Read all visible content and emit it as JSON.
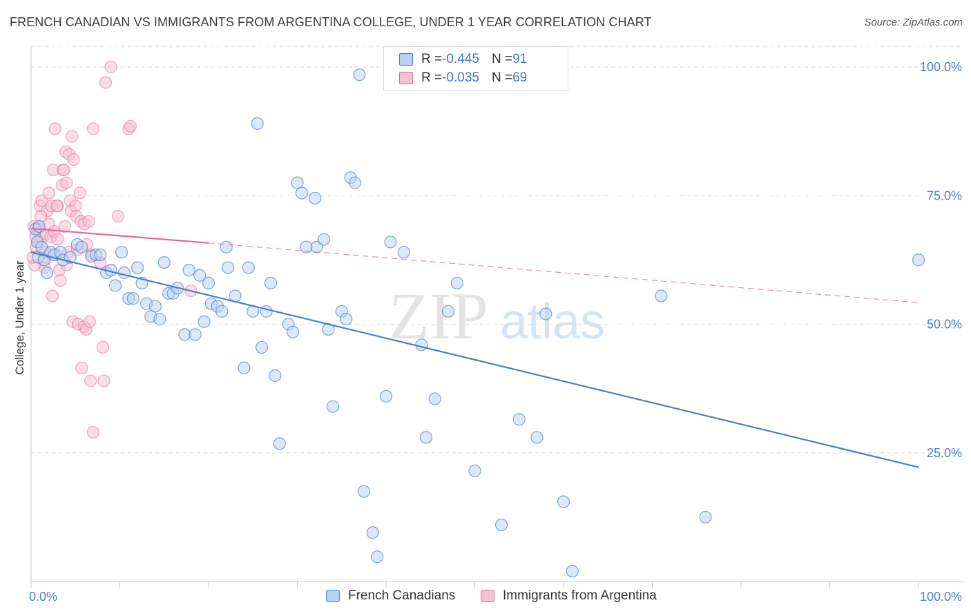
{
  "header": {
    "title": "FRENCH CANADIAN VS IMMIGRANTS FROM ARGENTINA COLLEGE, UNDER 1 YEAR CORRELATION CHART",
    "source": "Source: ZipAtlas.com"
  },
  "watermark": {
    "zip": "ZIP",
    "atlas": "atlas"
  },
  "legend": {
    "rows": [
      {
        "r_label": "R = ",
        "r_value": "-0.445",
        "n_label": "N = ",
        "n_value": "91"
      },
      {
        "r_label": "R = ",
        "r_value": "-0.035",
        "n_label": "N = ",
        "n_value": "69"
      }
    ]
  },
  "chart_data": {
    "type": "scatter",
    "title": "FRENCH CANADIAN VS IMMIGRANTS FROM ARGENTINA COLLEGE, UNDER 1 YEAR CORRELATION CHART",
    "xlabel": "",
    "ylabel": "College, Under 1 year",
    "xlim": [
      0,
      100
    ],
    "ylim": [
      0,
      104
    ],
    "x_tick_labels": [
      "0.0%",
      "100.0%"
    ],
    "y_ticks": [
      25,
      50,
      75,
      100
    ],
    "y_tick_labels": [
      "25.0%",
      "50.0%",
      "75.0%",
      "100.0%"
    ],
    "grid": true,
    "legend_position": "top-center",
    "colors": {
      "blue": "#4a7ecb",
      "blue_fill": "#b9d1f3",
      "pink": "#e8659a",
      "pink_fill": "#f6c1d3"
    },
    "series": [
      {
        "name": "French Canadians",
        "color": "#4a7ecb",
        "r": -0.445,
        "n": 91,
        "trend": {
          "x": [
            0,
            100
          ],
          "y": [
            64,
            22.2
          ],
          "style": "solid"
        },
        "points": [
          [
            0.5,
            68.5
          ],
          [
            0.7,
            66
          ],
          [
            0.8,
            63
          ],
          [
            1.2,
            65
          ],
          [
            1.5,
            62.5
          ],
          [
            2.2,
            64
          ],
          [
            2.6,
            63.5
          ],
          [
            3.3,
            64
          ],
          [
            3.6,
            62.5
          ],
          [
            4.4,
            63
          ],
          [
            5.2,
            65.5
          ],
          [
            5.7,
            65
          ],
          [
            6.8,
            63.2
          ],
          [
            7.3,
            63.5
          ],
          [
            7.8,
            63.5
          ],
          [
            8.5,
            60
          ],
          [
            9,
            60.5
          ],
          [
            9.5,
            57.5
          ],
          [
            10.2,
            64
          ],
          [
            10.5,
            60
          ],
          [
            11,
            55
          ],
          [
            11.5,
            55
          ],
          [
            12,
            61
          ],
          [
            12.5,
            58
          ],
          [
            13,
            54
          ],
          [
            14,
            53.5
          ],
          [
            13.5,
            51.5
          ],
          [
            14.5,
            51
          ],
          [
            15,
            62
          ],
          [
            15.5,
            56
          ],
          [
            16,
            56
          ],
          [
            16.5,
            57
          ],
          [
            17.3,
            48
          ],
          [
            17.8,
            60.5
          ],
          [
            18.5,
            48
          ],
          [
            19,
            59.5
          ],
          [
            19.5,
            50.5
          ],
          [
            20,
            58
          ],
          [
            20.3,
            54
          ],
          [
            21,
            53.5
          ],
          [
            21.5,
            52.5
          ],
          [
            22,
            65
          ],
          [
            22.2,
            61
          ],
          [
            23,
            55.5
          ],
          [
            24,
            41.5
          ],
          [
            24.5,
            61
          ],
          [
            25,
            52.5
          ],
          [
            25.5,
            89
          ],
          [
            26,
            45.5
          ],
          [
            26.5,
            52.5
          ],
          [
            27,
            58
          ],
          [
            27.5,
            40
          ],
          [
            28,
            26.8
          ],
          [
            29,
            50
          ],
          [
            29.5,
            48.5
          ],
          [
            30,
            77.5
          ],
          [
            30.5,
            75.5
          ],
          [
            31,
            65
          ],
          [
            32,
            74.5
          ],
          [
            32.2,
            65
          ],
          [
            33,
            66.5
          ],
          [
            33.5,
            49
          ],
          [
            34,
            34
          ],
          [
            35,
            52.5
          ],
          [
            35.5,
            51
          ],
          [
            36,
            78.5
          ],
          [
            36.5,
            77.5
          ],
          [
            37,
            98.5
          ],
          [
            37.5,
            17.5
          ],
          [
            38.5,
            9.5
          ],
          [
            39,
            4.8
          ],
          [
            40,
            36
          ],
          [
            40.5,
            66
          ],
          [
            42,
            64
          ],
          [
            44,
            46
          ],
          [
            44.5,
            28
          ],
          [
            45.5,
            35.5
          ],
          [
            47,
            52.5
          ],
          [
            48,
            58
          ],
          [
            50,
            21.5
          ],
          [
            53,
            11
          ],
          [
            55,
            31.5
          ],
          [
            57,
            28
          ],
          [
            58,
            52
          ],
          [
            60,
            15.5
          ],
          [
            61,
            2
          ],
          [
            71,
            55.5
          ],
          [
            76,
            12.5
          ],
          [
            100,
            62.5
          ],
          [
            0.9,
            69
          ],
          [
            1.8,
            60
          ]
        ]
      },
      {
        "name": "Immigrants from Argentina",
        "color": "#e8659a",
        "r": -0.035,
        "n": 69,
        "trend": {
          "x": [
            0,
            20
          ],
          "y": [
            68.6,
            65.8
          ],
          "style": "solid"
        },
        "trend_extended": {
          "x": [
            20,
            100
          ],
          "y": [
            65.8,
            54.2
          ],
          "style": "dashed"
        },
        "points": [
          [
            0.3,
            69
          ],
          [
            0.5,
            67
          ],
          [
            0.6,
            65
          ],
          [
            0.8,
            68.5
          ],
          [
            1,
            73
          ],
          [
            1,
            66
          ],
          [
            1.2,
            74
          ],
          [
            1.4,
            62.5
          ],
          [
            1.5,
            61
          ],
          [
            1.6,
            64
          ],
          [
            1.7,
            67.5
          ],
          [
            1.8,
            72
          ],
          [
            2,
            69.5
          ],
          [
            2,
            75.5
          ],
          [
            2.2,
            67
          ],
          [
            2.3,
            73
          ],
          [
            2.4,
            55.5
          ],
          [
            2.5,
            80
          ],
          [
            2.6,
            68
          ],
          [
            2.7,
            88
          ],
          [
            2.8,
            63.5
          ],
          [
            3,
            73
          ],
          [
            3,
            66.5
          ],
          [
            3.2,
            60.5
          ],
          [
            3.3,
            58.5
          ],
          [
            3.5,
            77
          ],
          [
            3.6,
            80
          ],
          [
            3.7,
            80
          ],
          [
            3.8,
            69
          ],
          [
            3.9,
            83.5
          ],
          [
            4,
            61.5
          ],
          [
            4,
            77.5
          ],
          [
            4.2,
            64
          ],
          [
            4.3,
            83
          ],
          [
            4.4,
            74
          ],
          [
            4.5,
            72
          ],
          [
            4.6,
            86.5
          ],
          [
            4.7,
            50.5
          ],
          [
            4.8,
            82
          ],
          [
            5,
            73
          ],
          [
            5.1,
            71
          ],
          [
            5.2,
            64.5
          ],
          [
            5.3,
            50
          ],
          [
            5.5,
            75.5
          ],
          [
            5.6,
            70
          ],
          [
            5.7,
            41.5
          ],
          [
            6,
            49.5
          ],
          [
            6,
            69.5
          ],
          [
            6.2,
            49
          ],
          [
            6.3,
            65.5
          ],
          [
            6.5,
            70
          ],
          [
            6.6,
            50.5
          ],
          [
            6.7,
            39
          ],
          [
            6.8,
            63.5
          ],
          [
            7,
            88
          ],
          [
            7,
            29
          ],
          [
            7.8,
            62
          ],
          [
            8.1,
            45.5
          ],
          [
            8.2,
            39
          ],
          [
            8.4,
            97
          ],
          [
            9,
            100
          ],
          [
            9.8,
            71
          ],
          [
            11,
            88
          ],
          [
            11.2,
            88.5
          ],
          [
            18,
            56.5
          ],
          [
            0.4,
            61.5
          ],
          [
            0.2,
            63
          ],
          [
            1.1,
            71
          ],
          [
            2.9,
            73
          ]
        ]
      }
    ]
  }
}
